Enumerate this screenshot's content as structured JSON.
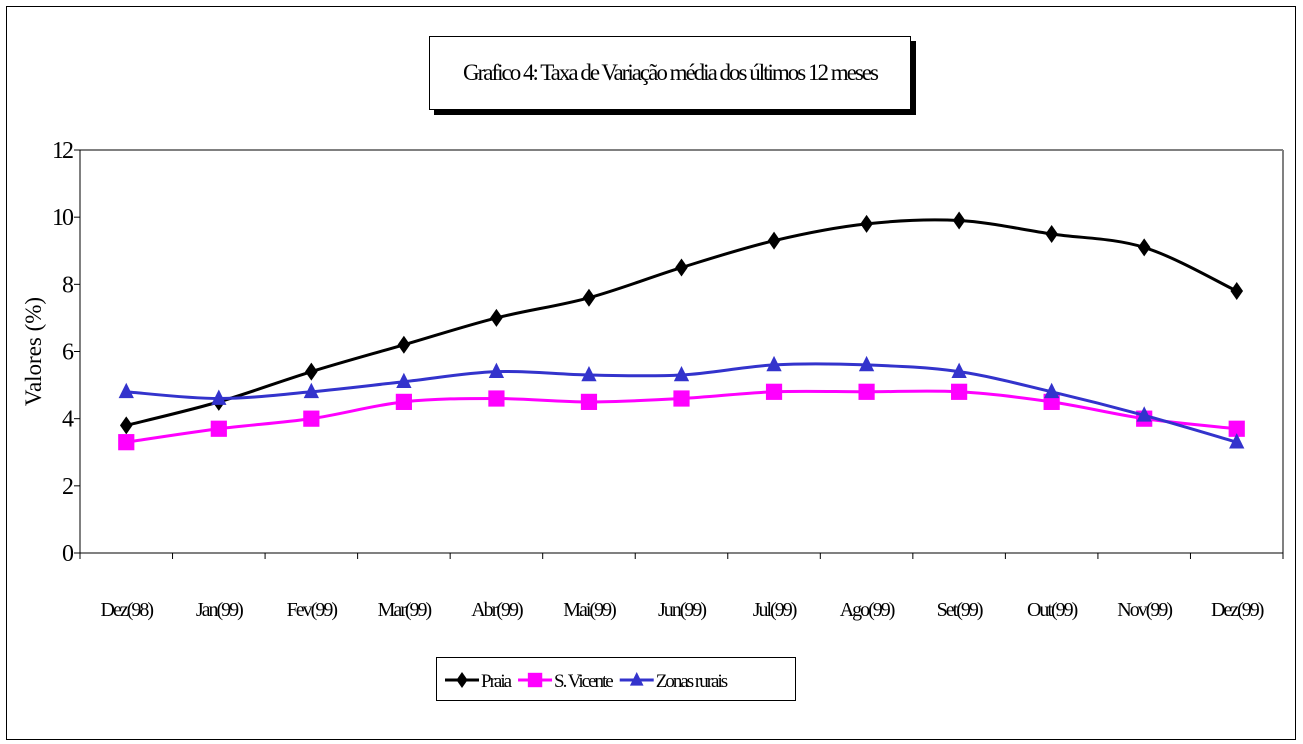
{
  "chart_data": {
    "type": "line",
    "title": "Grafico 4: Taxa de Variação média dos últimos 12 meses",
    "ylabel": "Valores (%)",
    "xlabel": "",
    "ylim": [
      0,
      12
    ],
    "yticks": [
      0,
      2,
      4,
      6,
      8,
      10,
      12
    ],
    "grid": false,
    "legend_position": "bottom",
    "categories": [
      "Dez(98)",
      "Jan(99)",
      "Fev(99)",
      "Mar(99)",
      "Abr(99)",
      "Mai(99)",
      "Jun(99)",
      "Jul(99)",
      "Ago(99)",
      "Set(99)",
      "Out(99)",
      "Nov(99)",
      "Dez(99)"
    ],
    "series": [
      {
        "name": "Praia",
        "color": "#000000",
        "marker": "diamond",
        "values": [
          3.8,
          4.5,
          5.4,
          6.2,
          7.0,
          7.6,
          8.5,
          9.3,
          9.8,
          9.9,
          9.5,
          9.1,
          7.8
        ]
      },
      {
        "name": "S. Vicente",
        "color": "#ff00ff",
        "marker": "square",
        "values": [
          3.3,
          3.7,
          4.0,
          4.5,
          4.6,
          4.5,
          4.6,
          4.8,
          4.8,
          4.8,
          4.5,
          4.0,
          3.7
        ]
      },
      {
        "name": "Zonas rurais",
        "color": "#3333cc",
        "marker": "triangle",
        "values": [
          4.8,
          4.6,
          4.8,
          5.1,
          5.4,
          5.3,
          5.3,
          5.6,
          5.6,
          5.4,
          4.8,
          4.1,
          3.3
        ]
      }
    ]
  }
}
